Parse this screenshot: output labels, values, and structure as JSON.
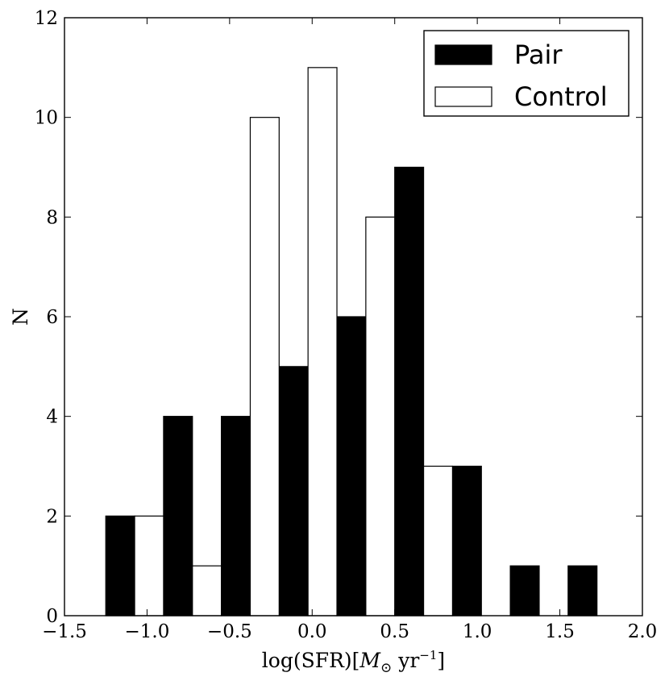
{
  "chart_data": {
    "type": "bar",
    "xlabel_main": "log(SFR)[",
    "xlabel_sym": "M",
    "xlabel_sub": "⊙",
    "xlabel_unit": " yr",
    "xlabel_sup": "−1",
    "xlabel_close": "]",
    "ylabel": "N",
    "xlim": [
      -1.5,
      2.0
    ],
    "ylim": [
      0,
      12
    ],
    "xticks": [
      -1.5,
      -1.0,
      -0.5,
      0.0,
      0.5,
      1.0,
      1.5,
      2.0
    ],
    "xtick_labels": [
      "−1.5",
      "−1.0",
      "−0.5",
      "0.0",
      "0.5",
      "1.0",
      "1.5",
      "2.0"
    ],
    "yticks": [
      0,
      2,
      4,
      6,
      8,
      10,
      12
    ],
    "ytick_labels": [
      "0",
      "2",
      "4",
      "6",
      "8",
      "10",
      "12"
    ],
    "bin_edges": [
      -1.25,
      -0.9,
      -0.55,
      -0.2,
      0.15,
      0.5,
      0.85,
      1.2,
      1.55,
      1.9
    ],
    "grid": false,
    "legend_position": "top-right",
    "series": [
      {
        "name": "Pair",
        "color": "#000000",
        "values": [
          2,
          4,
          4,
          5,
          6,
          9,
          3,
          1,
          1
        ]
      },
      {
        "name": "Control",
        "color": "#ffffff",
        "values": [
          2,
          1,
          10,
          11,
          8,
          3,
          0,
          0,
          0
        ]
      }
    ]
  }
}
